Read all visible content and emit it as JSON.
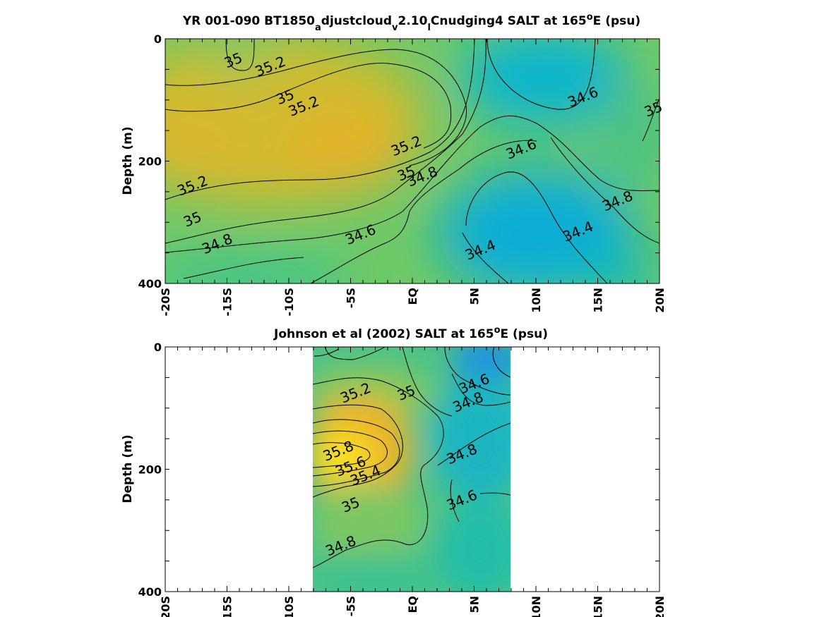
{
  "figure": {
    "panels": [
      {
        "title_parts": {
          "t1": "YR 001-090 BT1850",
          "s1": "a",
          "t2": "djustcloud",
          "s2": "v",
          "t3": "2.10",
          "s3": "l",
          "t4": "Cnudging4 SALT at 165",
          "sup": "o",
          "t5": "E (psu)"
        }
      },
      {
        "title_parts": {
          "t1": "Johnson et al (2002) SALT at 165",
          "sup": "o",
          "t2": "E (psu)"
        }
      }
    ]
  },
  "chart_data": [
    {
      "type": "heatmap",
      "subtype": "filled-contour",
      "title": "YR 001-090 BT1850_adjustcloud_v2.10_lCnudging4 SALT at 165°E (psu)",
      "xlabel": "",
      "ylabel": "Depth (m)",
      "xlim": [
        -20,
        20
      ],
      "ylim": [
        400,
        0
      ],
      "x_tick_values": [
        -20,
        -15,
        -10,
        -5,
        0,
        5,
        10,
        15,
        20
      ],
      "x_tick_labels": [
        "-20S",
        "-15S",
        "-10S",
        "-5S",
        "EQ",
        "5N",
        "10N",
        "15N",
        "20N"
      ],
      "y_tick_values": [
        0,
        200,
        400
      ],
      "y_tick_labels": [
        "0",
        "200",
        "400"
      ],
      "contour_levels": [
        34.4,
        34.6,
        34.8,
        35.0,
        35.2
      ],
      "colormap": "parula",
      "colors": [
        "#1a8fe0",
        "#07b3cf",
        "#2ec59d",
        "#7cc95f",
        "#c4bd33",
        "#f2c02d",
        "#f9e319"
      ],
      "data_coverage": {
        "lat": [
          -20,
          20
        ],
        "depth": [
          0,
          400
        ]
      },
      "contour_labels": [
        {
          "text": "35",
          "lat": -14.5,
          "depth": 35
        },
        {
          "text": "35.2",
          "lat": -11.5,
          "depth": 45
        },
        {
          "text": "35",
          "lat": -10.3,
          "depth": 95
        },
        {
          "text": "35.2",
          "lat": -8.8,
          "depth": 110
        },
        {
          "text": "35.2",
          "lat": -17.8,
          "depth": 240
        },
        {
          "text": "35",
          "lat": -17.8,
          "depth": 295
        },
        {
          "text": "34.8",
          "lat": -15.8,
          "depth": 335
        },
        {
          "text": "34.6",
          "lat": -4.2,
          "depth": 320
        },
        {
          "text": "35.2",
          "lat": -0.5,
          "depth": 175
        },
        {
          "text": "35",
          "lat": -0.5,
          "depth": 220
        },
        {
          "text": "34.8",
          "lat": 0.8,
          "depth": 225
        },
        {
          "text": "34.6",
          "lat": 8.8,
          "depth": 180
        },
        {
          "text": "34.4",
          "lat": 5.5,
          "depth": 345
        },
        {
          "text": "34.4",
          "lat": 13.4,
          "depth": 315
        },
        {
          "text": "34.6",
          "lat": 13.8,
          "depth": 95
        },
        {
          "text": "34.8",
          "lat": 16.6,
          "depth": 265
        },
        {
          "text": "35",
          "lat": 19.5,
          "depth": 115
        }
      ]
    },
    {
      "type": "heatmap",
      "subtype": "filled-contour",
      "title": "Johnson et al (2002) SALT at 165°E (psu)",
      "xlabel": "",
      "ylabel": "Depth (m)",
      "xlim": [
        -20,
        20
      ],
      "ylim": [
        400,
        0
      ],
      "x_tick_values": [
        -20,
        -15,
        -10,
        -5,
        0,
        5,
        10,
        15,
        20
      ],
      "x_tick_labels": [
        "-20S",
        "-15S",
        "-10S",
        "-5S",
        "EQ",
        "5N",
        "10N",
        "15N",
        "20N"
      ],
      "y_tick_values": [
        0,
        200,
        400
      ],
      "y_tick_labels": [
        "0",
        "200",
        "400"
      ],
      "contour_levels": [
        34.6,
        34.8,
        35.0,
        35.2,
        35.4,
        35.6,
        35.8
      ],
      "colormap": "parula",
      "colors": [
        "#1a8fe0",
        "#07b3cf",
        "#2ec59d",
        "#7cc95f",
        "#c4bd33",
        "#f2c02d",
        "#f9e319"
      ],
      "data_coverage": {
        "lat": [
          -8,
          8
        ],
        "depth": [
          0,
          400
        ]
      },
      "contour_labels": [
        {
          "text": "35.2",
          "lat": -4.6,
          "depth": 75
        },
        {
          "text": "35",
          "lat": -0.5,
          "depth": 75
        },
        {
          "text": "34.6",
          "lat": 5.0,
          "depth": 60
        },
        {
          "text": "34.8",
          "lat": 4.5,
          "depth": 90
        },
        {
          "text": "35.8",
          "lat": -6.0,
          "depth": 170
        },
        {
          "text": "35.6",
          "lat": -5.0,
          "depth": 195
        },
        {
          "text": "35.4",
          "lat": -3.8,
          "depth": 210
        },
        {
          "text": "34.8",
          "lat": 4.0,
          "depth": 175
        },
        {
          "text": "34.6",
          "lat": 4.0,
          "depth": 250
        },
        {
          "text": "35",
          "lat": -5.0,
          "depth": 258
        },
        {
          "text": "34.8",
          "lat": -5.8,
          "depth": 325
        }
      ]
    }
  ]
}
